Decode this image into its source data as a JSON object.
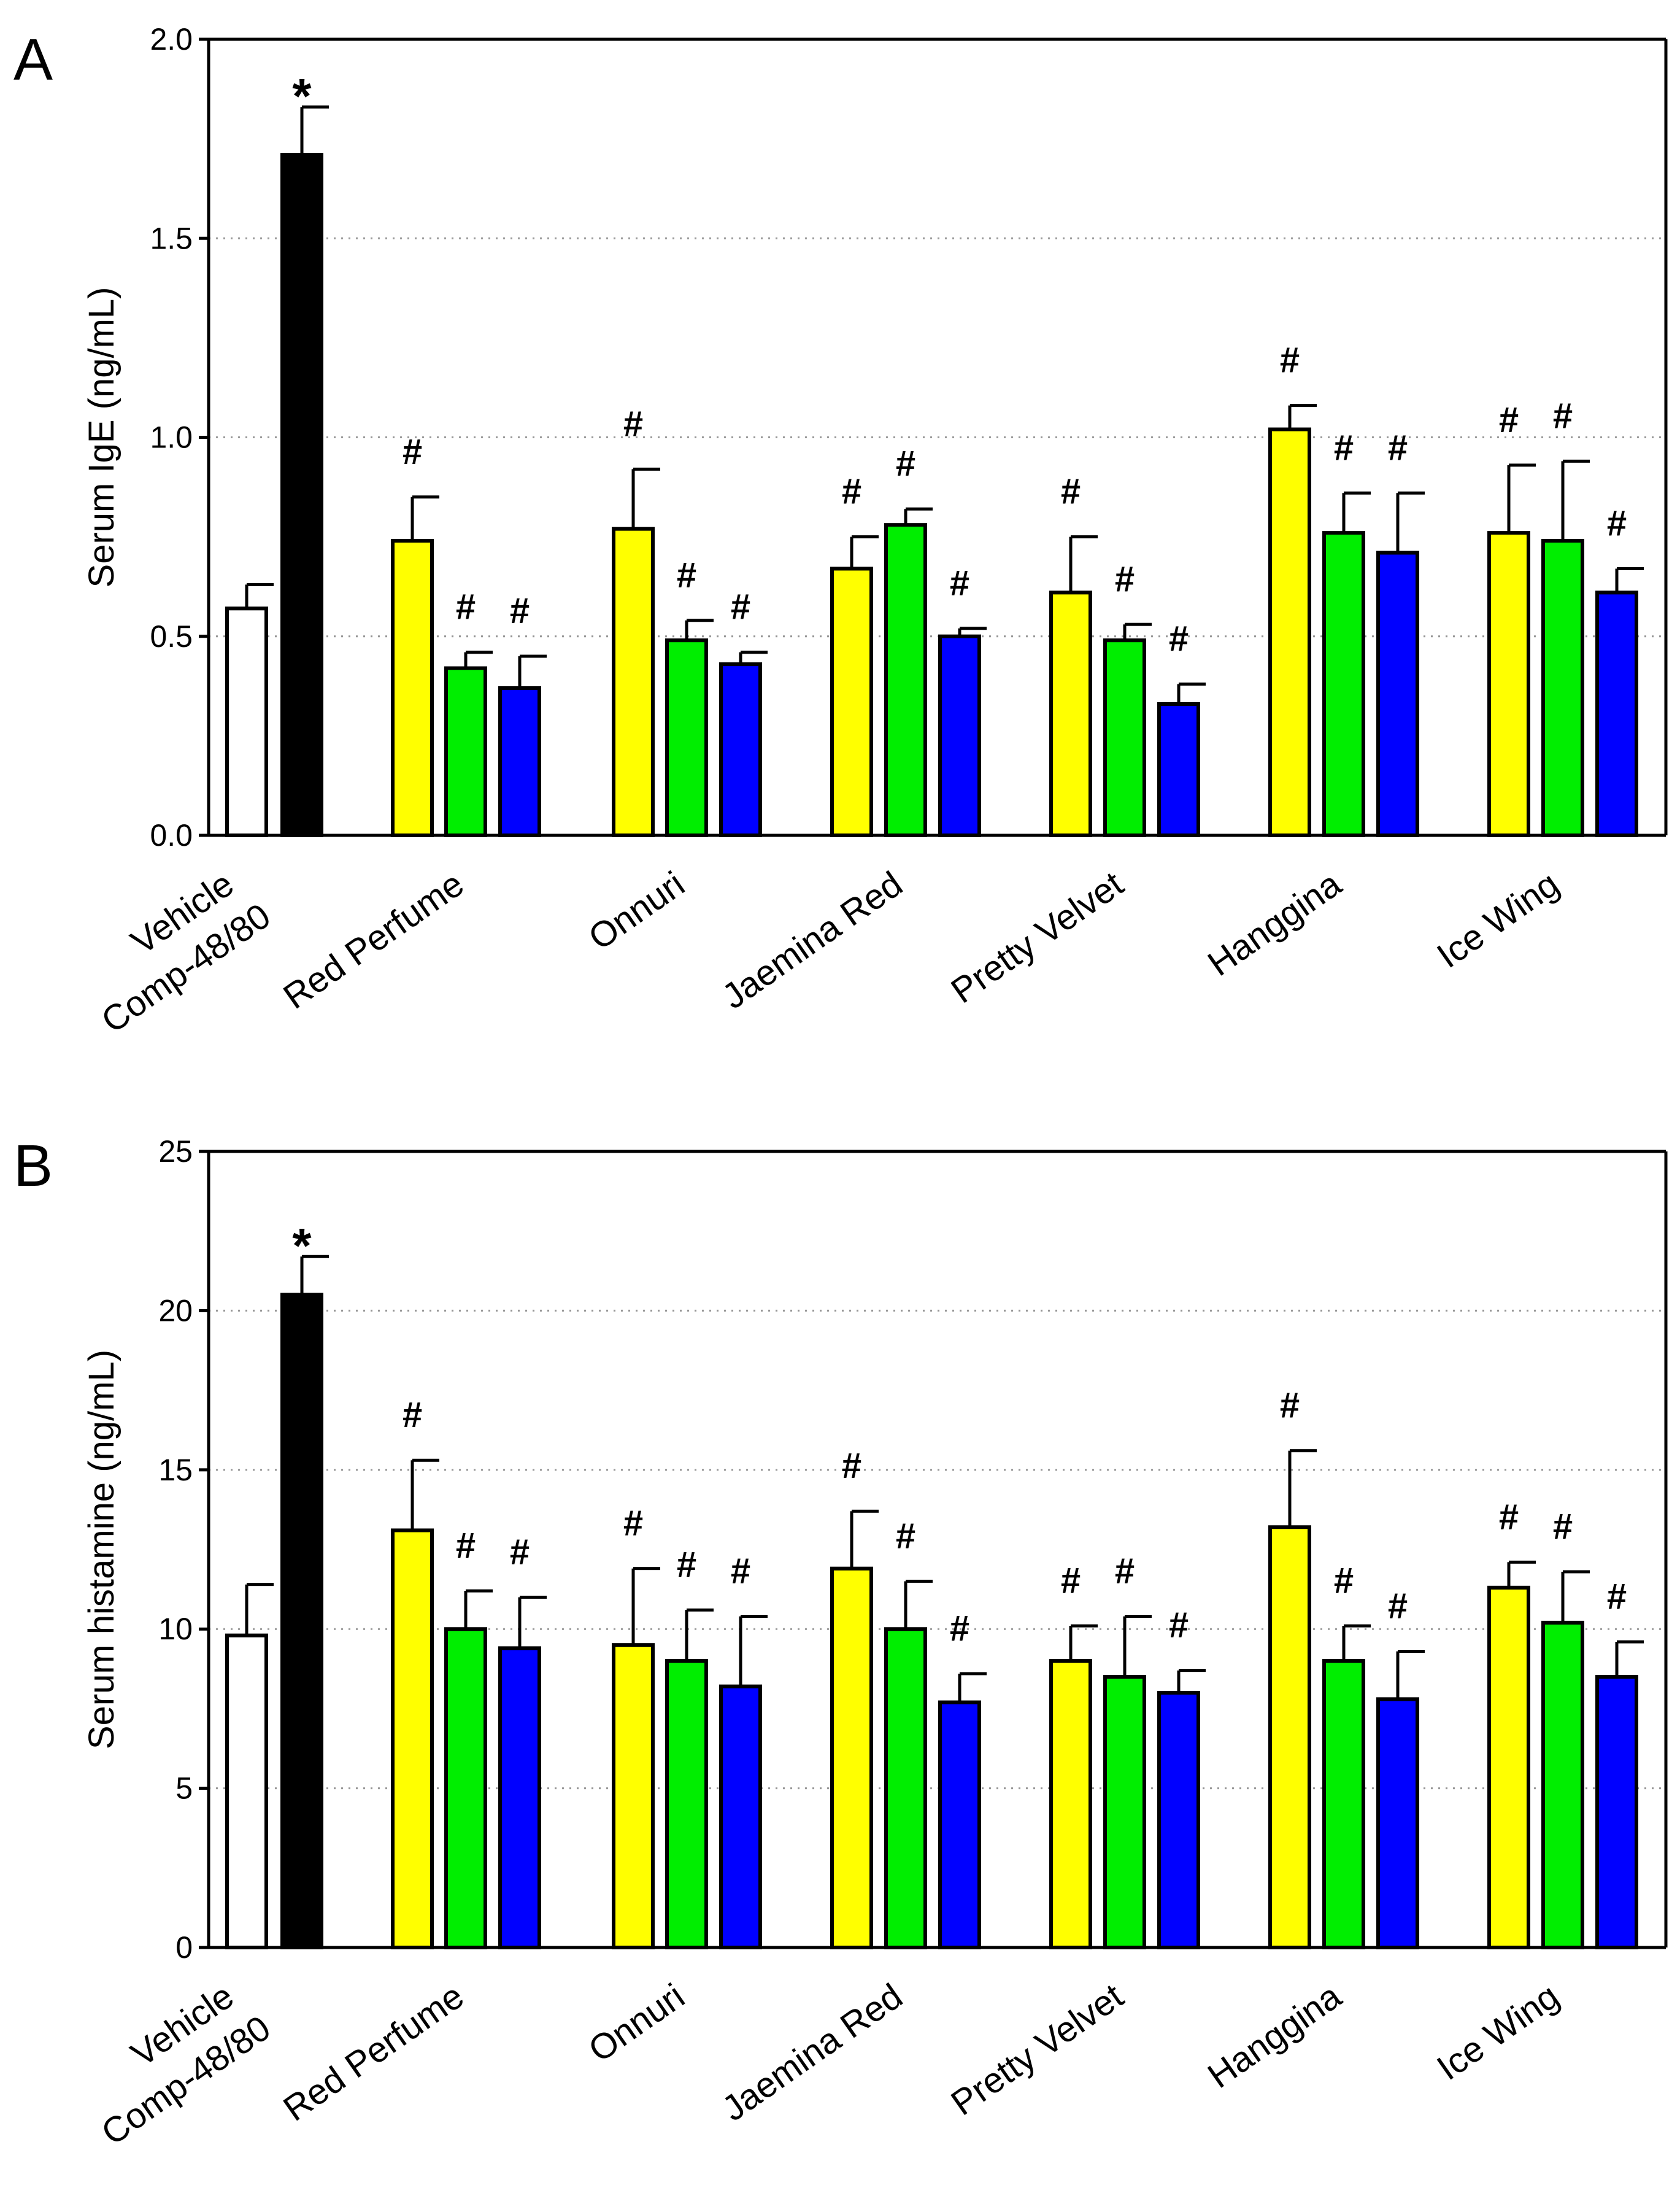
{
  "figure": {
    "colors": {
      "vehicle": "#ffffff",
      "comp": "#000000",
      "low": "#ffff00",
      "mid": "#00ee00",
      "high": "#0000ff"
    }
  },
  "chart_data": [
    {
      "type": "bar",
      "panel_label": "A",
      "ylabel": "Serum IgE (ng/mL)",
      "xlabel": "",
      "ylim": [
        0,
        2.0
      ],
      "yticks": [
        "0.0",
        "0.5",
        "1.0",
        "1.5",
        "2.0"
      ],
      "ytick_values": [
        0,
        0.5,
        1.0,
        1.5,
        2.0
      ],
      "grid": "dotted horizontal",
      "categories": [
        "Vehicle",
        "Comp-48/80",
        "Red Perfume",
        "Onnuri",
        "Jaemina Red",
        "Pretty Velvet",
        "Hanggina",
        "Ice Wing"
      ],
      "bars": [
        {
          "group": "control",
          "color": "vehicle",
          "value": 0.57,
          "error": 0.06,
          "mark": ""
        },
        {
          "group": "control",
          "color": "comp",
          "value": 1.71,
          "error": 0.12,
          "mark": "*"
        },
        {
          "group": "Red Perfume",
          "color": "low",
          "value": 0.74,
          "error": 0.11,
          "mark": "#"
        },
        {
          "group": "Red Perfume",
          "color": "mid",
          "value": 0.42,
          "error": 0.04,
          "mark": "#"
        },
        {
          "group": "Red Perfume",
          "color": "high",
          "value": 0.37,
          "error": 0.08,
          "mark": "#"
        },
        {
          "group": "Onnuri",
          "color": "low",
          "value": 0.77,
          "error": 0.15,
          "mark": "#"
        },
        {
          "group": "Onnuri",
          "color": "mid",
          "value": 0.49,
          "error": 0.05,
          "mark": "#"
        },
        {
          "group": "Onnuri",
          "color": "high",
          "value": 0.43,
          "error": 0.03,
          "mark": "#"
        },
        {
          "group": "Jaemina Red",
          "color": "low",
          "value": 0.67,
          "error": 0.08,
          "mark": "#"
        },
        {
          "group": "Jaemina Red",
          "color": "mid",
          "value": 0.78,
          "error": 0.04,
          "mark": "#"
        },
        {
          "group": "Jaemina Red",
          "color": "high",
          "value": 0.5,
          "error": 0.02,
          "mark": "#"
        },
        {
          "group": "Pretty Velvet",
          "color": "low",
          "value": 0.61,
          "error": 0.14,
          "mark": "#"
        },
        {
          "group": "Pretty Velvet",
          "color": "mid",
          "value": 0.49,
          "error": 0.04,
          "mark": "#"
        },
        {
          "group": "Pretty Velvet",
          "color": "high",
          "value": 0.33,
          "error": 0.05,
          "mark": "#"
        },
        {
          "group": "Hanggina",
          "color": "low",
          "value": 1.02,
          "error": 0.06,
          "mark": "#"
        },
        {
          "group": "Hanggina",
          "color": "mid",
          "value": 0.76,
          "error": 0.1,
          "mark": "#"
        },
        {
          "group": "Hanggina",
          "color": "high",
          "value": 0.71,
          "error": 0.15,
          "mark": "#"
        },
        {
          "group": "Ice Wing",
          "color": "low",
          "value": 0.76,
          "error": 0.17,
          "mark": "#"
        },
        {
          "group": "Ice Wing",
          "color": "mid",
          "value": 0.74,
          "error": 0.2,
          "mark": "#"
        },
        {
          "group": "Ice Wing",
          "color": "high",
          "value": 0.61,
          "error": 0.06,
          "mark": "#"
        }
      ]
    },
    {
      "type": "bar",
      "panel_label": "B",
      "ylabel": "Serum histamine (ng/mL)",
      "xlabel": "",
      "ylim": [
        0,
        25
      ],
      "yticks": [
        "0",
        "5",
        "10",
        "15",
        "20",
        "25"
      ],
      "ytick_values": [
        0,
        5,
        10,
        15,
        20,
        25
      ],
      "grid": "dotted horizontal",
      "categories": [
        "Vehicle",
        "Comp-48/80",
        "Red Perfume",
        "Onnuri",
        "Jaemina Red",
        "Pretty Velvet",
        "Hanggina",
        "Ice Wing"
      ],
      "bars": [
        {
          "group": "control",
          "color": "vehicle",
          "value": 9.8,
          "error": 1.6,
          "mark": ""
        },
        {
          "group": "control",
          "color": "comp",
          "value": 20.5,
          "error": 1.2,
          "mark": "*"
        },
        {
          "group": "Red Perfume",
          "color": "low",
          "value": 13.1,
          "error": 2.2,
          "mark": "#"
        },
        {
          "group": "Red Perfume",
          "color": "mid",
          "value": 10.0,
          "error": 1.2,
          "mark": "#"
        },
        {
          "group": "Red Perfume",
          "color": "high",
          "value": 9.4,
          "error": 1.6,
          "mark": "#"
        },
        {
          "group": "Onnuri",
          "color": "low",
          "value": 9.5,
          "error": 2.4,
          "mark": "#"
        },
        {
          "group": "Onnuri",
          "color": "mid",
          "value": 9.0,
          "error": 1.6,
          "mark": "#"
        },
        {
          "group": "Onnuri",
          "color": "high",
          "value": 8.2,
          "error": 2.2,
          "mark": "#"
        },
        {
          "group": "Jaemina Red",
          "color": "low",
          "value": 11.9,
          "error": 1.8,
          "mark": "#"
        },
        {
          "group": "Jaemina Red",
          "color": "mid",
          "value": 10.0,
          "error": 1.5,
          "mark": "#"
        },
        {
          "group": "Jaemina Red",
          "color": "high",
          "value": 7.7,
          "error": 0.9,
          "mark": "#"
        },
        {
          "group": "Pretty Velvet",
          "color": "low",
          "value": 9.0,
          "error": 1.1,
          "mark": "#"
        },
        {
          "group": "Pretty Velvet",
          "color": "mid",
          "value": 8.5,
          "error": 1.9,
          "mark": "#"
        },
        {
          "group": "Pretty Velvet",
          "color": "high",
          "value": 8.0,
          "error": 0.7,
          "mark": "#"
        },
        {
          "group": "Hanggina",
          "color": "low",
          "value": 13.2,
          "error": 2.4,
          "mark": "#"
        },
        {
          "group": "Hanggina",
          "color": "mid",
          "value": 9.0,
          "error": 1.1,
          "mark": "#"
        },
        {
          "group": "Hanggina",
          "color": "high",
          "value": 7.8,
          "error": 1.5,
          "mark": "#"
        },
        {
          "group": "Ice Wing",
          "color": "low",
          "value": 11.3,
          "error": 0.8,
          "mark": "#"
        },
        {
          "group": "Ice Wing",
          "color": "mid",
          "value": 10.2,
          "error": 1.6,
          "mark": "#"
        },
        {
          "group": "Ice Wing",
          "color": "high",
          "value": 8.5,
          "error": 1.1,
          "mark": "#"
        }
      ]
    }
  ]
}
